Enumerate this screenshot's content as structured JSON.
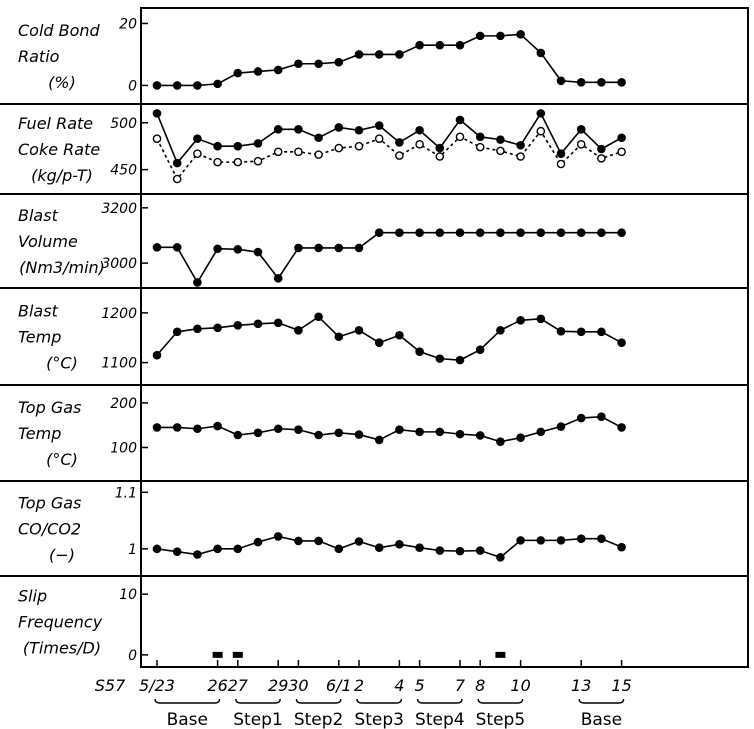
{
  "chart_data": {
    "type": "line",
    "x_axis": {
      "year_label": "S57",
      "tick_labels": [
        "5/23",
        "26",
        "27",
        "29",
        "30",
        "6/1",
        "2",
        "4",
        "5",
        "7",
        "8",
        "10",
        "13",
        "15"
      ],
      "tick_positions": [
        0,
        3,
        4,
        6,
        7,
        9,
        10,
        12,
        13,
        15,
        16,
        18,
        21,
        23
      ],
      "periods": [
        {
          "label": "Base",
          "from": 0,
          "to": 3
        },
        {
          "label": "Step1",
          "from": 4,
          "to": 6
        },
        {
          "label": "Step2",
          "from": 7,
          "to": 9
        },
        {
          "label": "Step3",
          "from": 10,
          "to": 12
        },
        {
          "label": "Step4",
          "from": 13,
          "to": 15
        },
        {
          "label": "Step5",
          "from": 16,
          "to": 18
        },
        {
          "label": "Base",
          "from": 21,
          "to": 23
        }
      ]
    },
    "panels": [
      {
        "label_lines": [
          "Cold Bond",
          "Ratio",
          "(%)"
        ],
        "yticks": [
          0,
          20
        ],
        "ylim": [
          -6,
          25
        ],
        "series": [
          {
            "style": "solid-filled",
            "values": [
              0,
              0,
              0,
              0.5,
              4,
              4.5,
              5,
              7,
              7,
              7.5,
              10,
              10,
              10,
              13,
              13,
              13,
              16,
              16,
              16.5,
              10.5,
              1.5,
              1,
              1,
              1
            ]
          }
        ]
      },
      {
        "label_lines": [
          "Fuel Rate",
          "Coke Rate",
          "(kg/p-T)"
        ],
        "yticks": [
          450,
          500
        ],
        "ylim": [
          424,
          520
        ],
        "series": [
          {
            "style": "solid-filled",
            "values": [
              510,
              457,
              483,
              475,
              475,
              478,
              493,
              493,
              484,
              495,
              492,
              497,
              479,
              492,
              473,
              503,
              485,
              482,
              476,
              510,
              467,
              493,
              472,
              484
            ]
          },
          {
            "style": "dashed-open",
            "values": [
              483,
              440,
              467,
              458,
              458,
              459,
              469,
              469,
              466,
              473,
              475,
              483,
              465,
              477,
              464,
              485,
              474,
              470,
              464,
              491,
              456,
              477,
              462,
              469
            ]
          }
        ]
      },
      {
        "label_lines": [
          "Blast",
          "Volume",
          "(Nm3/min)"
        ],
        "yticks": [
          3000,
          3200
        ],
        "ylim": [
          2910,
          3250
        ],
        "series": [
          {
            "style": "solid-filled",
            "values": [
              3057,
              3057,
              2930,
              3052,
              3050,
              3040,
              2945,
              3055,
              3055,
              3055,
              3055,
              3110,
              3110,
              3110,
              3110,
              3110,
              3110,
              3110,
              3110,
              3110,
              3110,
              3110,
              3110,
              3110
            ]
          }
        ]
      },
      {
        "label_lines": [
          "Blast",
          "Temp",
          "(°C)"
        ],
        "yticks": [
          1100,
          1200
        ],
        "ylim": [
          1055,
          1250
        ],
        "series": [
          {
            "style": "solid-filled",
            "values": [
              1115,
              1162,
              1168,
              1170,
              1175,
              1178,
              1180,
              1165,
              1192,
              1152,
              1165,
              1140,
              1155,
              1122,
              1108,
              1105,
              1126,
              1165,
              1185,
              1188,
              1163,
              1162,
              1162,
              1140
            ]
          }
        ]
      },
      {
        "label_lines": [
          "Top Gas",
          "Temp",
          "(°C)"
        ],
        "yticks": [
          100,
          200
        ],
        "ylim": [
          25,
          240
        ],
        "series": [
          {
            "style": "solid-filled",
            "values": [
              145,
              145,
              142,
              148,
              128,
              133,
              142,
              140,
              128,
              133,
              129,
              117,
              140,
              135,
              135,
              130,
              127,
              113,
              122,
              135,
              147,
              166,
              169,
              145
            ]
          }
        ]
      },
      {
        "label_lines": [
          "Top Gas",
          "CO/CO2",
          "(−)"
        ],
        "yticks": [
          1.0,
          1.1
        ],
        "ylim": [
          0.952,
          1.12
        ],
        "series": [
          {
            "style": "solid-filled",
            "values": [
              1.0,
              0.995,
              0.99,
              1.0,
              1.0,
              1.012,
              1.022,
              1.014,
              1.014,
              1.0,
              1.013,
              1.002,
              1.008,
              1.002,
              0.997,
              0.996,
              0.997,
              0.985,
              1.015,
              1.015,
              1.015,
              1.018,
              1.018,
              1.003
            ]
          }
        ]
      },
      {
        "label_lines": [
          "Slip",
          "Frequency",
          "(Times/D)"
        ],
        "yticks": [
          0,
          10
        ],
        "ylim": [
          -2,
          13
        ],
        "series": [
          {
            "style": "markers-only",
            "x": [
              3,
              4,
              17
            ],
            "values": [
              0,
              0,
              0
            ]
          }
        ]
      }
    ]
  }
}
